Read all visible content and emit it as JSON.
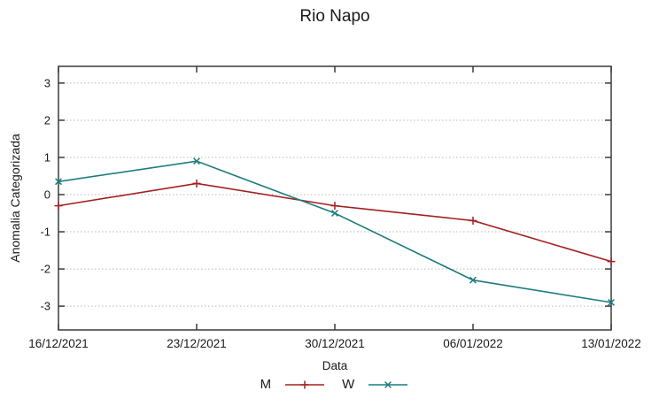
{
  "chart_data": {
    "type": "line",
    "title": "Rio Napo",
    "xlabel": "Data",
    "ylabel": "Anomalia Categorizada",
    "categories": [
      "16/12/2021",
      "23/12/2021",
      "30/12/2021",
      "06/01/2022",
      "13/01/2022"
    ],
    "series": [
      {
        "name": "M",
        "color": "#a32020",
        "marker": "plus",
        "values": [
          -0.3,
          0.3,
          -0.3,
          -0.7,
          -1.8
        ]
      },
      {
        "name": "W",
        "color": "#1e7d7d",
        "marker": "cross",
        "values": [
          0.35,
          0.9,
          -0.5,
          -2.3,
          -2.9
        ]
      }
    ],
    "yticks": [
      -3,
      -2,
      -1,
      0,
      1,
      2,
      3
    ],
    "ylim": [
      -3.64,
      3.45
    ],
    "grid": "horizontal-dotted",
    "legend_position": "bottom-center",
    "frame_color": "#3a3a3a",
    "grid_color": "#b8b8b8",
    "text_color": "#1a1a1a"
  }
}
